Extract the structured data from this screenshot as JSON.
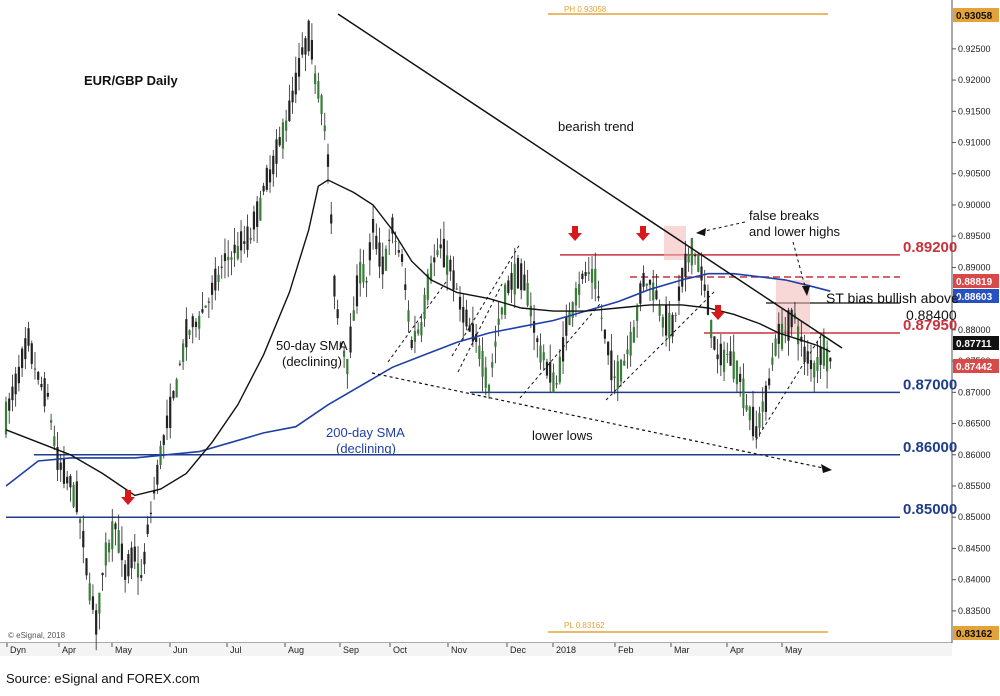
{
  "source": "Source: eSignal and FOREX.com",
  "colors": {
    "background": "#ffffff",
    "up_candle": "#3a7d3a",
    "down_candle": "#222222",
    "sma50": "#111111",
    "sma200": "#1f3fa8",
    "red_level": "#c8323c",
    "blue_level": "#1f3d8a",
    "orange": "#e3a23a",
    "arrow_red": "#d7191c",
    "highlight": "#f3b6b6"
  },
  "chart_data": {
    "type": "candlestick",
    "title": "EUR/GBP Daily",
    "watermark": "© eSignal, 2018",
    "xlabel": "",
    "ylabel": "",
    "ylim": [
      0.8282,
      0.932
    ],
    "x_tick_labels": [
      "Dyn",
      "Apr",
      "May",
      "Jun",
      "Jul",
      "Aug",
      "Sep",
      "Oct",
      "Nov",
      "Dec",
      "2018",
      "Feb",
      "Mar",
      "Apr",
      "May"
    ],
    "y_ticks": [
      "0.92500",
      "0.92000",
      "0.91500",
      "0.91000",
      "0.90500",
      "0.90000",
      "0.89500",
      "0.89000",
      "0.88500",
      "0.88000",
      "0.87500",
      "0.87000",
      "0.86500",
      "0.86000",
      "0.85500",
      "0.85000",
      "0.84500",
      "0.84000",
      "0.83500"
    ],
    "price_anchors": [
      [
        0,
        0.866
      ],
      [
        4,
        0.873
      ],
      [
        7,
        0.878
      ],
      [
        10,
        0.872
      ],
      [
        13,
        0.869
      ],
      [
        16,
        0.859
      ],
      [
        19,
        0.856
      ],
      [
        22,
        0.853
      ],
      [
        25,
        0.842
      ],
      [
        28,
        0.833
      ],
      [
        31,
        0.844
      ],
      [
        34,
        0.849
      ],
      [
        37,
        0.841
      ],
      [
        40,
        0.844
      ],
      [
        42,
        0.84
      ],
      [
        45,
        0.851
      ],
      [
        48,
        0.86
      ],
      [
        52,
        0.869
      ],
      [
        56,
        0.879
      ],
      [
        60,
        0.882
      ],
      [
        64,
        0.886
      ],
      [
        68,
        0.891
      ],
      [
        72,
        0.893
      ],
      [
        76,
        0.895
      ],
      [
        80,
        0.902
      ],
      [
        84,
        0.908
      ],
      [
        88,
        0.915
      ],
      [
        92,
        0.924
      ],
      [
        94,
        0.927
      ],
      [
        96,
        0.921
      ],
      [
        98,
        0.917
      ],
      [
        100,
        0.907
      ],
      [
        102,
        0.887
      ],
      [
        104,
        0.878
      ],
      [
        106,
        0.875
      ],
      [
        108,
        0.882
      ],
      [
        110,
        0.89
      ],
      [
        112,
        0.888
      ],
      [
        114,
        0.896
      ],
      [
        117,
        0.89
      ],
      [
        120,
        0.896
      ],
      [
        123,
        0.891
      ],
      [
        126,
        0.878
      ],
      [
        129,
        0.881
      ],
      [
        132,
        0.89
      ],
      [
        135,
        0.893
      ],
      [
        138,
        0.89
      ],
      [
        141,
        0.884
      ],
      [
        144,
        0.88
      ],
      [
        147,
        0.877
      ],
      [
        150,
        0.871
      ],
      [
        153,
        0.881
      ],
      [
        156,
        0.887
      ],
      [
        159,
        0.889
      ],
      [
        162,
        0.886
      ],
      [
        165,
        0.878
      ],
      [
        168,
        0.874
      ],
      [
        171,
        0.871
      ],
      [
        174,
        0.88
      ],
      [
        177,
        0.886
      ],
      [
        180,
        0.889
      ],
      [
        183,
        0.888
      ],
      [
        186,
        0.879
      ],
      [
        189,
        0.872
      ],
      [
        192,
        0.875
      ],
      [
        195,
        0.88
      ],
      [
        198,
        0.888
      ],
      [
        201,
        0.887
      ],
      [
        204,
        0.882
      ],
      [
        207,
        0.88
      ],
      [
        210,
        0.888
      ],
      [
        213,
        0.893
      ],
      [
        215,
        0.891
      ],
      [
        218,
        0.884
      ],
      [
        221,
        0.875
      ],
      [
        224,
        0.876
      ],
      [
        227,
        0.874
      ],
      [
        230,
        0.868
      ],
      [
        233,
        0.864
      ],
      [
        236,
        0.869
      ],
      [
        239,
        0.878
      ],
      [
        242,
        0.88
      ],
      [
        245,
        0.882
      ],
      [
        248,
        0.876
      ],
      [
        251,
        0.874
      ],
      [
        254,
        0.877
      ],
      [
        256,
        0.875
      ]
    ],
    "sma50": [
      [
        0,
        0.864
      ],
      [
        20,
        0.86
      ],
      [
        30,
        0.857
      ],
      [
        40,
        0.8535
      ],
      [
        48,
        0.8545
      ],
      [
        56,
        0.857
      ],
      [
        64,
        0.862
      ],
      [
        72,
        0.868
      ],
      [
        80,
        0.876
      ],
      [
        88,
        0.886
      ],
      [
        94,
        0.896
      ],
      [
        97,
        0.903
      ],
      [
        100,
        0.904
      ],
      [
        108,
        0.902
      ],
      [
        114,
        0.9
      ],
      [
        120,
        0.896
      ],
      [
        126,
        0.891
      ],
      [
        132,
        0.888
      ],
      [
        140,
        0.886
      ],
      [
        150,
        0.885
      ],
      [
        160,
        0.8835
      ],
      [
        170,
        0.883
      ],
      [
        180,
        0.883
      ],
      [
        190,
        0.8835
      ],
      [
        200,
        0.884
      ],
      [
        210,
        0.884
      ],
      [
        218,
        0.8835
      ],
      [
        226,
        0.8825
      ],
      [
        234,
        0.881
      ],
      [
        240,
        0.8795
      ],
      [
        246,
        0.8785
      ],
      [
        252,
        0.8775
      ],
      [
        256,
        0.8765
      ]
    ],
    "sma200": [
      [
        0,
        0.855
      ],
      [
        10,
        0.859
      ],
      [
        20,
        0.8595
      ],
      [
        40,
        0.8595
      ],
      [
        60,
        0.8605
      ],
      [
        70,
        0.862
      ],
      [
        80,
        0.8635
      ],
      [
        90,
        0.8645
      ],
      [
        100,
        0.868
      ],
      [
        110,
        0.871
      ],
      [
        120,
        0.874
      ],
      [
        130,
        0.876
      ],
      [
        140,
        0.878
      ],
      [
        150,
        0.8795
      ],
      [
        160,
        0.8805
      ],
      [
        170,
        0.8815
      ],
      [
        180,
        0.883
      ],
      [
        190,
        0.8845
      ],
      [
        200,
        0.8865
      ],
      [
        210,
        0.888
      ],
      [
        218,
        0.889
      ],
      [
        226,
        0.889
      ],
      [
        234,
        0.8885
      ],
      [
        242,
        0.888
      ],
      [
        250,
        0.887
      ],
      [
        256,
        0.8862
      ]
    ],
    "levels": [
      {
        "value": 0.892,
        "label": "0.89200",
        "color": "red"
      },
      {
        "value": 0.8795,
        "label": "0.87950",
        "color": "red"
      },
      {
        "value": 0.87,
        "label": "0.87000",
        "color": "blue"
      },
      {
        "value": 0.86,
        "label": "0.86000",
        "color": "blue"
      },
      {
        "value": 0.85,
        "label": "0.85000",
        "color": "blue"
      }
    ],
    "price_tags": [
      {
        "label": "0.93058",
        "value": 0.93058,
        "color": "orange"
      },
      {
        "label": "0.88819",
        "value": 0.88819,
        "color": "red"
      },
      {
        "label": "0.88603",
        "value": 0.88603,
        "color": "blue"
      },
      {
        "label": "0.87711",
        "value": 0.87711,
        "color": "black"
      },
      {
        "label": "0.87442",
        "value": 0.87442,
        "color": "red"
      },
      {
        "label": "0.83162",
        "value": 0.83162,
        "color": "orange"
      }
    ],
    "period_high": {
      "label": "PH 0.93058",
      "value": 0.93058
    },
    "period_low": {
      "label": "PL 0.83162",
      "value": 0.83162
    },
    "annotations": {
      "bearish_trend": "bearish trend",
      "false_breaks_line1": "false breaks",
      "false_breaks_line2": "and lower highs",
      "st_bias": "ST bias bullish above",
      "st_level": "0.88400",
      "sma50_line1": "50-day SMA",
      "sma50_line2": "(declining)",
      "sma200_line1": "200-day SMA",
      "sma200_line2": "(declining)",
      "lower_lows": "lower lows"
    }
  }
}
